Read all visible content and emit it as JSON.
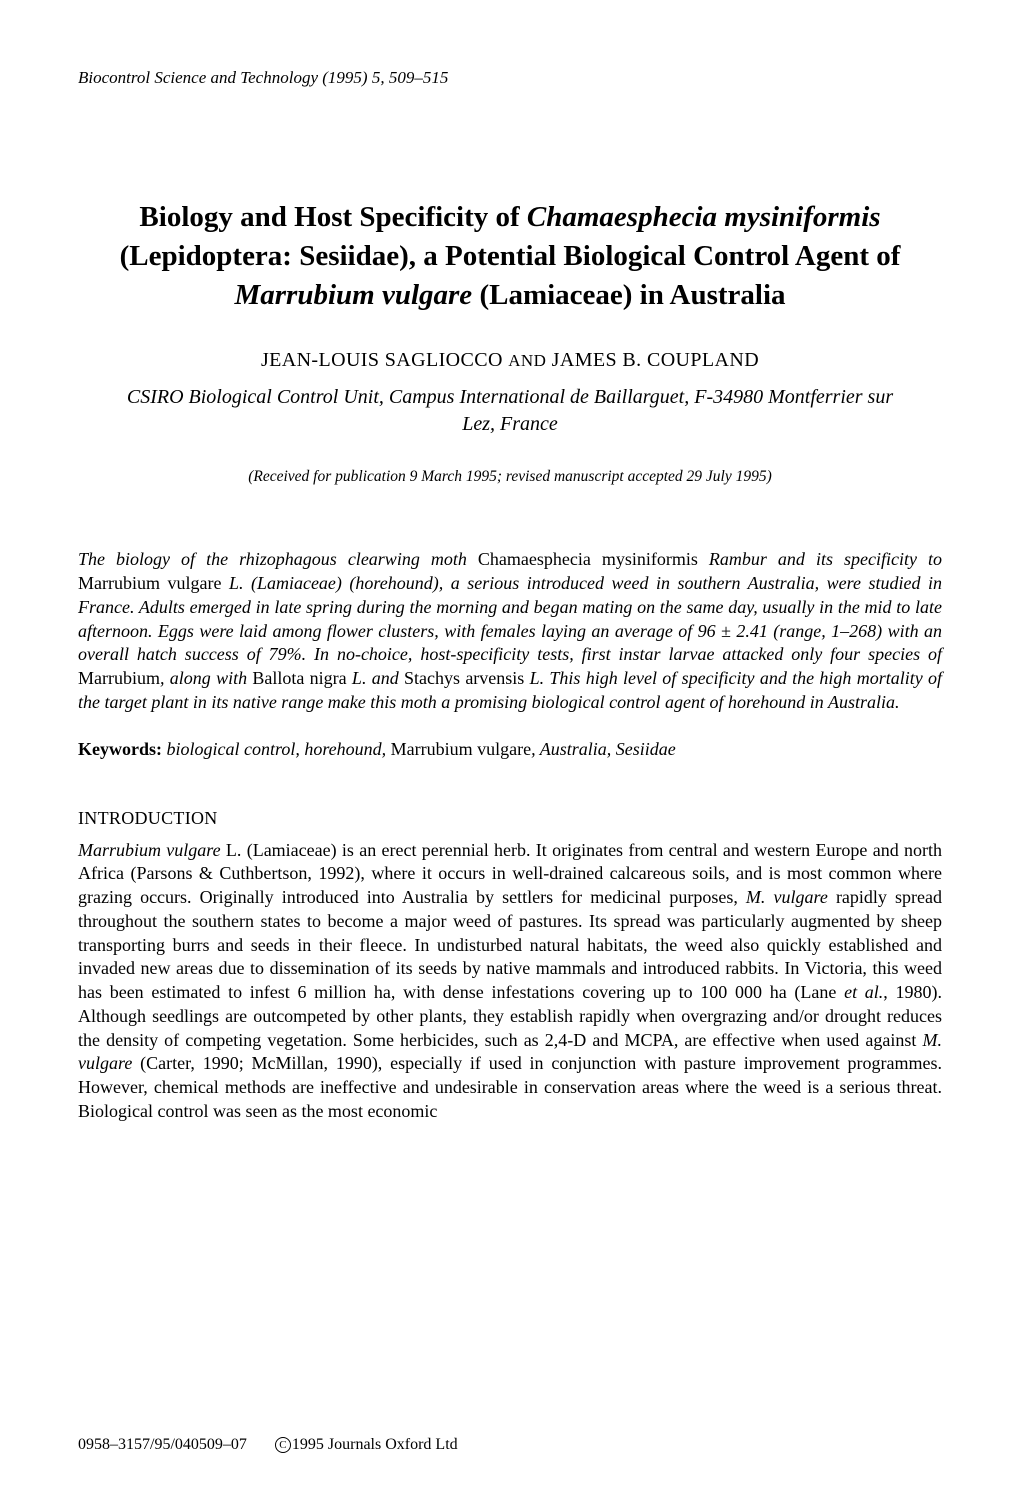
{
  "running_header": "Biocontrol Science and Technology (1995) 5, 509–515",
  "title_html": "Biology and Host Specificity of <span class=\"genus\">Chamaesphecia mysiniformis</span> (Lepidoptera: Sesiidae), a Potential Biological Control Agent of <span class=\"genus\">Marrubium vulgare</span> (Lamiaceae) in Australia",
  "authors_html": "JEAN-LOUIS SAGLIOCCO <span class=\"sc\">AND</span> JAMES B. COUPLAND",
  "affiliation": "CSIRO Biological Control Unit, Campus International de Baillarguet, F-34980 Montferrier sur Lez, France",
  "received": "(Received for publication 9 March 1995; revised manuscript accepted 29 July 1995)",
  "abstract_html": "The biology of the rhizophagous clearwing moth <span class=\"roman\">Chamaesphecia mysiniformis</span> Rambur and its specificity to <span class=\"roman\">Marrubium vulgare</span> L. (Lamiaceae) (horehound), a serious introduced weed in southern Australia, were studied in France. Adults emerged in late spring during the morning and began mating on the same day, usually in the mid to late afternoon. Eggs were laid among flower clusters, with females laying an average of 96 ± 2.41 (range, 1–268) with an overall hatch success of 79%. In no-choice, host-specificity tests, first instar larvae attacked only four species of <span class=\"roman\">Marrubium</span>, along with <span class=\"roman\">Ballota nigra</span> L. and <span class=\"roman\">Stachys arvensis</span> L. This high level of specificity and the high mortality of the target plant in its native range make this moth a promising biological control agent of horehound in Australia.",
  "keywords_label": "Keywords:",
  "keywords_html": "biological control, horehound, <span class=\"roman\">Marrubium vulgare</span>, Australia, Sesiidae",
  "section_heading": "INTRODUCTION",
  "body_html": "<span class=\"it\">Marrubium vulgare</span> L. (Lamiaceae) is an erect perennial herb. It originates from central and western Europe and north Africa (Parsons &amp; Cuthbertson, 1992), where it occurs in well-drained calcareous soils, and is most common where grazing occurs. Originally introduced into Australia by settlers for medicinal purposes, <span class=\"it\">M. vulgare</span> rapidly spread throughout the southern states to become a major weed of pastures. Its spread was particularly augmented by sheep transporting burrs and seeds in their fleece. In undisturbed natural habitats, the weed also quickly established and invaded new areas due to dissemination of its seeds by native mammals and introduced rabbits. In Victoria, this weed has been estimated to infest 6 million ha, with dense infestations covering up to 100 000 ha (Lane <span class=\"it\">et al.</span>, 1980). Although seedlings are outcompeted by other plants, they establish rapidly when overgrazing and/or drought reduces the density of competing vegetation. Some herbicides, such as 2,4-D and MCPA, are effective when used against <span class=\"it\">M. vulgare</span> (Carter, 1990; McMillan, 1990), especially if used in conjunction with pasture improvement programmes. However, chemical methods are ineffective and undesirable in conservation areas where the weed is a serious threat. Biological control was seen as the most economic",
  "footer_left": "0958–3157/95/040509–07",
  "footer_right": "1995 Journals Oxford Ltd"
}
